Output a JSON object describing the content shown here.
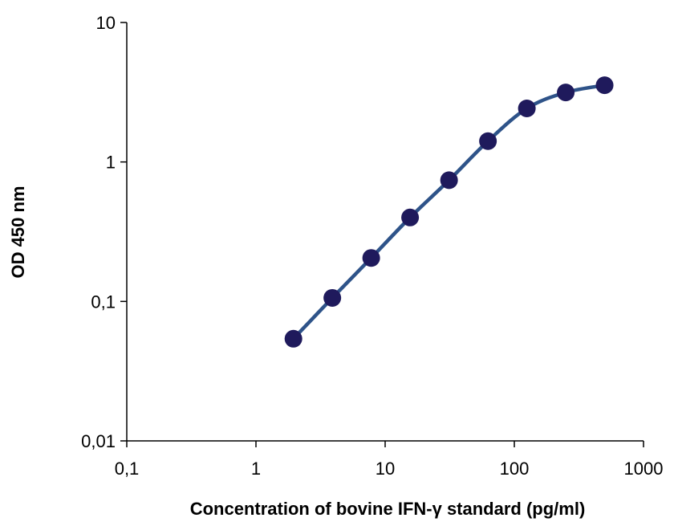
{
  "chart_data": {
    "type": "scatter",
    "xlabel": "Concentration of bovine IFN-γ standard (pg/ml)",
    "ylabel": "OD 450 nm",
    "xscale": "log",
    "yscale": "log",
    "xlim": [
      0.1,
      1000
    ],
    "ylim": [
      0.01,
      10
    ],
    "x_ticks": [
      {
        "value": 0.1,
        "label": "0,1"
      },
      {
        "value": 1,
        "label": "1"
      },
      {
        "value": 10,
        "label": "10"
      },
      {
        "value": 100,
        "label": "100"
      },
      {
        "value": 1000,
        "label": "1000"
      }
    ],
    "y_ticks": [
      {
        "value": 0.01,
        "label": "0,01"
      },
      {
        "value": 0.1,
        "label": "0,1"
      },
      {
        "value": 1,
        "label": "1"
      },
      {
        "value": 10,
        "label": "10"
      }
    ],
    "grid": false,
    "legend": "none",
    "series": [
      {
        "x": [
          1.95,
          3.9,
          7.8,
          15.6,
          31.25,
          62.5,
          125,
          250,
          500
        ],
        "y": [
          0.054,
          0.106,
          0.205,
          0.4,
          0.74,
          1.41,
          2.42,
          3.15,
          3.55
        ],
        "marker_color": "#1f1a5c",
        "line_color": "#2e5389",
        "smooth_line": true
      }
    ]
  }
}
